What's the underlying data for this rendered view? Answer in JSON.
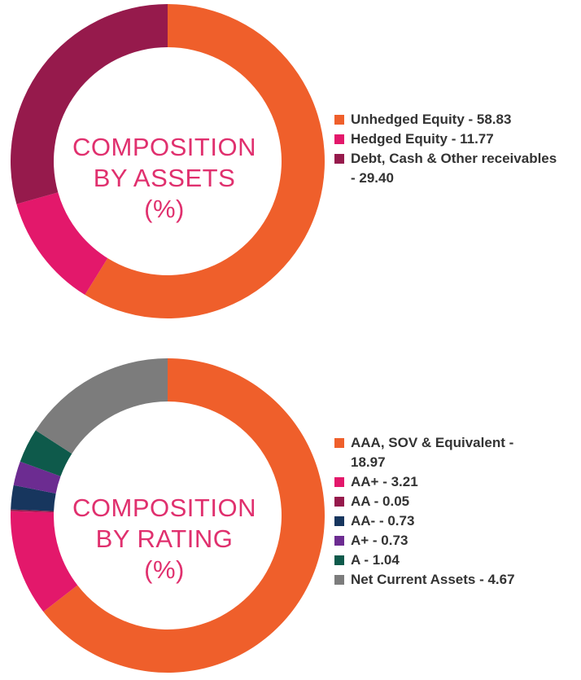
{
  "charts": [
    {
      "center_lines": [
        "COMPOSITION",
        "BY ASSETS",
        "(%)"
      ],
      "legend": [
        {
          "label": "Unhedged Equity - 58.83",
          "color": "#ef5f2b"
        },
        {
          "label": "Hedged Equity - 11.77",
          "color": "#e3186b"
        },
        {
          "label": "Debt, Cash & Other receivables",
          "label_cont": "- 29.40",
          "color": "#961a4c"
        }
      ]
    },
    {
      "center_lines": [
        "COMPOSITION",
        "BY RATING",
        "(%)"
      ],
      "legend": [
        {
          "label": "AAA, SOV & Equivalent -",
          "label_cont": "18.97",
          "color": "#ef5f2b"
        },
        {
          "label": "AA+ - 3.21",
          "color": "#e3186b"
        },
        {
          "label": "AA - 0.05",
          "color": "#961a4c"
        },
        {
          "label": "AA- - 0.73",
          "color": "#17365e"
        },
        {
          "label": "A+ - 0.73",
          "color": "#6c2c91"
        },
        {
          "label": "A - 1.04",
          "color": "#0e5a4b"
        },
        {
          "label": "Net Current Assets - 4.67",
          "color": "#7c7c7c"
        }
      ]
    }
  ],
  "chart_data": [
    {
      "type": "pie",
      "subtype": "donut",
      "title": "COMPOSITION BY ASSETS (%)",
      "categories": [
        "Unhedged Equity",
        "Hedged Equity",
        "Debt, Cash & Other receivables"
      ],
      "values": [
        58.83,
        11.77,
        29.4
      ],
      "colors": [
        "#ef5f2b",
        "#e3186b",
        "#961a4c"
      ],
      "legend": "right"
    },
    {
      "type": "pie",
      "subtype": "donut",
      "title": "COMPOSITION BY RATING (%)",
      "categories": [
        "AAA, SOV & Equivalent",
        "AA+",
        "AA",
        "AA-",
        "A+",
        "A",
        "Net Current Assets"
      ],
      "values": [
        18.97,
        3.21,
        0.05,
        0.73,
        0.73,
        1.04,
        4.67
      ],
      "colors": [
        "#ef5f2b",
        "#e3186b",
        "#961a4c",
        "#17365e",
        "#6c2c91",
        "#0e5a4b",
        "#7c7c7c"
      ],
      "legend": "right"
    }
  ]
}
